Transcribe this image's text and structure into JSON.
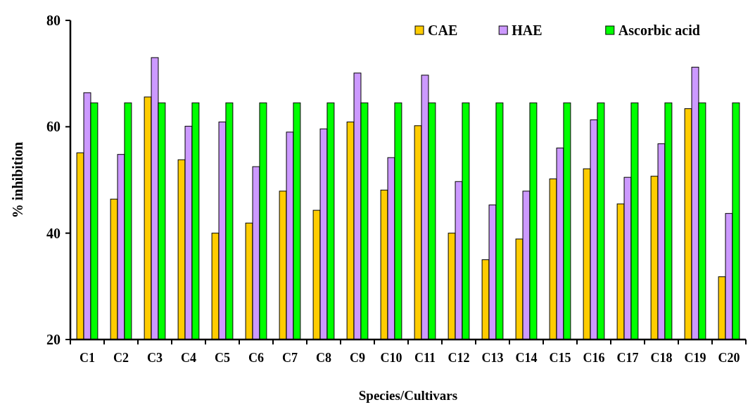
{
  "chart_data": {
    "type": "bar",
    "xlabel": "Species/Cultivars",
    "ylabel": "% inhibition",
    "categories": [
      "C1",
      "C2",
      "C3",
      "C4",
      "C5",
      "C6",
      "C7",
      "C8",
      "C9",
      "C10",
      "C11",
      "C12",
      "C13",
      "C14",
      "C15",
      "C16",
      "C17",
      "C18",
      "C19",
      "C20"
    ],
    "series": [
      {
        "name": "CAE",
        "color": "#ffcc00",
        "values": [
          55.1,
          46.4,
          65.6,
          53.8,
          40.0,
          41.9,
          47.9,
          44.3,
          60.9,
          48.1,
          60.2,
          40.0,
          35.0,
          38.9,
          50.2,
          52.1,
          45.5,
          50.7,
          63.4,
          31.8
        ]
      },
      {
        "name": "HAE",
        "color": "#cc99ff",
        "values": [
          66.4,
          54.8,
          73.0,
          60.1,
          60.9,
          52.5,
          59.0,
          59.6,
          70.1,
          54.2,
          69.7,
          49.7,
          45.3,
          47.9,
          56.0,
          61.3,
          50.5,
          56.8,
          71.2,
          43.7
        ]
      },
      {
        "name": "Ascorbic acid",
        "color": "#00ff00",
        "values": [
          64.5,
          64.5,
          64.5,
          64.5,
          64.5,
          64.5,
          64.5,
          64.5,
          64.5,
          64.5,
          64.5,
          64.5,
          64.5,
          64.5,
          64.5,
          64.5,
          64.5,
          64.5,
          64.5,
          64.5
        ]
      }
    ],
    "ylim": [
      20,
      80
    ],
    "yticks": [
      20,
      40,
      60,
      80
    ],
    "grid": false,
    "legend": "top right"
  }
}
